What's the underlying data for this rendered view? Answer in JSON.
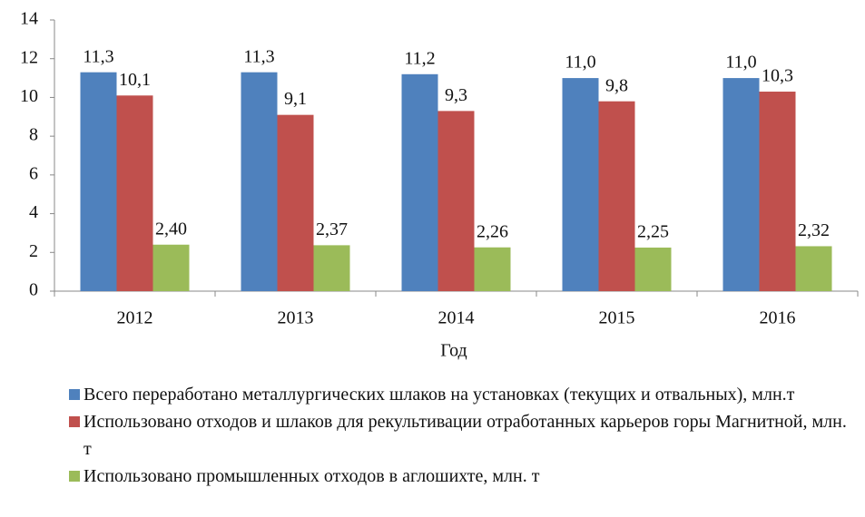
{
  "chart_data": {
    "type": "bar",
    "categories": [
      "2012",
      "2013",
      "2014",
      "2015",
      "2016"
    ],
    "xlabel": "Год",
    "series": [
      {
        "name": "Всего переработано металлургических шлаков на установках (текущих и отвальных), млн.т",
        "color": "#4f81bd",
        "values": [
          11.3,
          11.3,
          11.2,
          11.0,
          11.0
        ],
        "value_labels": [
          "11,3",
          "11,3",
          "11,2",
          "11,0",
          "11,0"
        ]
      },
      {
        "name": "Использовано отходов и шлаков для рекультивации отработанных карьеров горы Магнитной, млн. т",
        "color": "#c0504d",
        "values": [
          10.1,
          9.1,
          9.3,
          9.8,
          10.3
        ],
        "value_labels": [
          "10,1",
          "9,1",
          "9,3",
          "9,8",
          "10,3"
        ]
      },
      {
        "name": "Использовано промышленных отходов в аглошихте, млн. т",
        "color": "#9bbb59",
        "values": [
          2.4,
          2.37,
          2.26,
          2.25,
          2.32
        ],
        "value_labels": [
          "2,40",
          "2,37",
          "2,26",
          "2,25",
          "2,32"
        ]
      }
    ],
    "ylim": [
      0,
      14
    ],
    "yticks": [
      0,
      2,
      4,
      6,
      8,
      10,
      12,
      14
    ],
    "legend": "bottom"
  }
}
